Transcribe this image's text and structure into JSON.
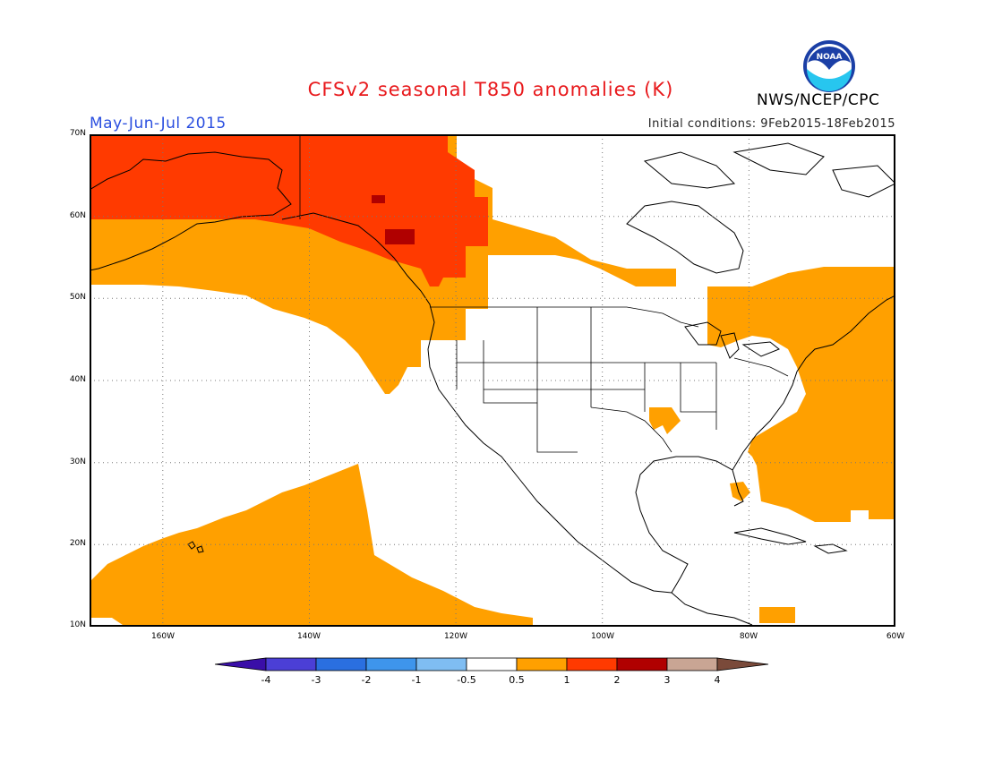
{
  "title": "CFSv2 seasonal T850 anomalies (K)",
  "period": "May-Jun-Jul 2015",
  "initial_conditions": "Initial conditions: 9Feb2015-18Feb2015",
  "agency": "NWS/NCEP/CPC",
  "logo_text": "NOAA",
  "lat_labels": [
    "70N",
    "60N",
    "50N",
    "40N",
    "30N",
    "20N",
    "10N"
  ],
  "lon_labels": [
    "160W",
    "140W",
    "120W",
    "100W",
    "80W",
    "60W"
  ],
  "colorbar": {
    "labels": [
      "-4",
      "-3",
      "-2",
      "-1",
      "-0.5",
      "0.5",
      "1",
      "2",
      "3",
      "4"
    ],
    "colors": [
      "#3a0ea8",
      "#4b3fd6",
      "#2a6fe0",
      "#3e95ec",
      "#7fbdf2",
      "#ffffff",
      "#ffa000",
      "#ff3a00",
      "#b00000",
      "#c9a594",
      "#7a4a3a"
    ]
  },
  "map": {
    "lon_range": [
      -170,
      -60
    ],
    "lat_range": [
      10,
      70
    ],
    "anomaly_color_warm1": "#ffa000",
    "anomaly_color_warm2": "#ff3a00",
    "anomaly_color_warm3": "#b00000"
  }
}
